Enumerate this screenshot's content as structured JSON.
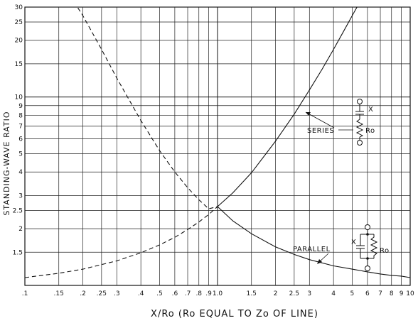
{
  "chart_data": {
    "type": "line",
    "title": "",
    "xlabel": "X/Ro (Ro EQUAL TO Zo OF LINE)",
    "ylabel": "STANDING-WAVE RATIO",
    "x_scale": "log",
    "y_scale": "log",
    "xlim": [
      0.1,
      10
    ],
    "ylim": [
      1,
      30
    ],
    "grid": true,
    "legend": "none",
    "x_ticks": [
      0.1,
      0.15,
      0.2,
      0.25,
      0.3,
      0.4,
      0.5,
      0.6,
      0.7,
      0.8,
      0.9,
      1.0,
      1.5,
      2,
      2.5,
      3,
      4,
      5,
      6,
      7,
      8,
      9,
      10
    ],
    "x_tick_labels": [
      ".1",
      ".15",
      ".2",
      ".25",
      ".3",
      ".4",
      ".5",
      ".6",
      ".7",
      ".8",
      ".9",
      "1.0",
      "1.5",
      "2",
      "2.5",
      "3",
      "4",
      "5",
      "6",
      "7",
      "8",
      "9",
      "10"
    ],
    "y_ticks": [
      1.5,
      2,
      2.5,
      3,
      4,
      5,
      6,
      7,
      8,
      9,
      10,
      15,
      20,
      25,
      30
    ],
    "y_tick_labels": [
      "1.5",
      "2",
      "2.5",
      "3",
      "4",
      "5",
      "6",
      "7",
      "8",
      "9",
      "10",
      "15",
      "20",
      "25",
      "30"
    ],
    "series": [
      {
        "name": "SERIES",
        "x": [
          0.1,
          0.15,
          0.2,
          0.3,
          0.4,
          0.5,
          0.6,
          0.7,
          0.8,
          0.9,
          1.0,
          1.2,
          1.5,
          2,
          2.5,
          3,
          3.5,
          4,
          4.5,
          5,
          5.4
        ],
        "y": [
          1.1,
          1.16,
          1.22,
          1.35,
          1.49,
          1.64,
          1.8,
          1.98,
          2.17,
          2.38,
          2.62,
          3.1,
          3.96,
          5.83,
          8.1,
          10.9,
          14.1,
          17.9,
          22.2,
          27.0,
          31.1
        ],
        "dash_below_x": 1.0
      },
      {
        "name": "PARALLEL",
        "x": [
          0.18,
          0.2,
          0.25,
          0.3,
          0.4,
          0.5,
          0.6,
          0.7,
          0.8,
          0.9,
          1.0,
          1.2,
          1.5,
          2,
          2.5,
          3,
          4,
          5,
          6,
          7,
          8,
          9,
          10
        ],
        "y": [
          32.0,
          27.0,
          17.9,
          12.6,
          7.5,
          5.2,
          4.0,
          3.3,
          2.85,
          2.55,
          2.62,
          2.2,
          1.88,
          1.6,
          1.46,
          1.37,
          1.27,
          1.22,
          1.18,
          1.15,
          1.13,
          1.12,
          1.1
        ],
        "dash_below_x": 1.0
      }
    ],
    "annotations": [
      {
        "text": "SERIES",
        "series": "SERIES"
      },
      {
        "text": "PARALLEL",
        "series": "PARALLEL"
      }
    ],
    "circuit_labels": {
      "series_reactance": "X",
      "series_resistance": "Ro",
      "parallel_reactance": "X",
      "parallel_resistance": "Ro"
    }
  }
}
